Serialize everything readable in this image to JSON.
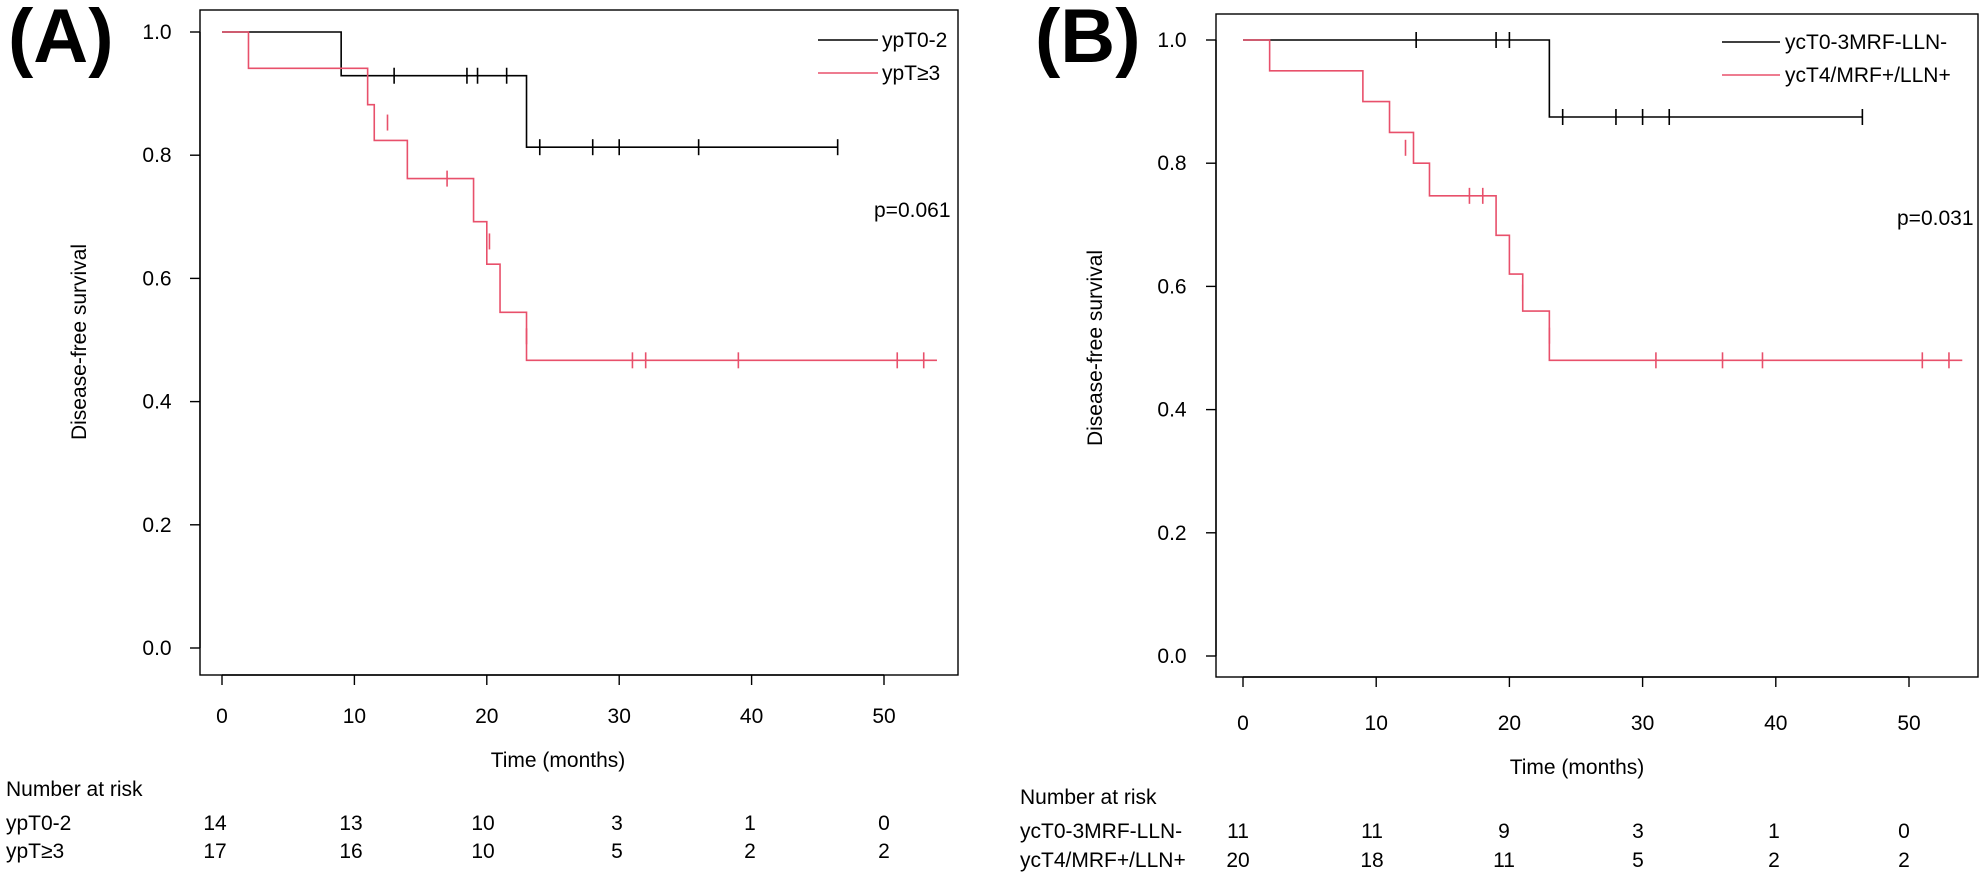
{
  "colors": {
    "group1": "#000000",
    "group2": "#e8506b",
    "background": "#ffffff"
  },
  "chart_data": [
    {
      "type": "line",
      "subtype": "kaplan-meier",
      "panel_label": "(A)",
      "title": "",
      "xlabel": "Time (months)",
      "ylabel": "Disease-free survival",
      "xlim": [
        0,
        55
      ],
      "ylim": [
        0,
        1
      ],
      "x_ticks": [
        0,
        10,
        20,
        30,
        40,
        50
      ],
      "y_ticks": [
        "0.0",
        "0.2",
        "0.4",
        "0.6",
        "0.8",
        "1.0"
      ],
      "legend_position": "top-right",
      "p_value": "p=0.061",
      "series": [
        {
          "name": "ypT0-2",
          "color_key": "group1",
          "steps": [
            [
              0,
              1.0
            ],
            [
              9,
              0.929
            ],
            [
              23,
              0.813
            ],
            [
              46.5,
              0.813
            ]
          ],
          "censored": [
            [
              13,
              0.929
            ],
            [
              18.5,
              0.929
            ],
            [
              19.3,
              0.929
            ],
            [
              21.5,
              0.929
            ],
            [
              24,
              0.813
            ],
            [
              28,
              0.813
            ],
            [
              30,
              0.813
            ],
            [
              36,
              0.813
            ],
            [
              46.5,
              0.813
            ]
          ]
        },
        {
          "name": "ypT≥3",
          "color_key": "group2",
          "steps": [
            [
              0,
              1.0
            ],
            [
              2,
              0.941
            ],
            [
              11,
              0.882
            ],
            [
              11.5,
              0.824
            ],
            [
              14,
              0.762
            ],
            [
              19,
              0.692
            ],
            [
              20,
              0.623
            ],
            [
              21,
              0.545
            ],
            [
              23,
              0.467
            ],
            [
              54,
              0.467
            ]
          ],
          "censored": [
            [
              12.5,
              0.853
            ],
            [
              17,
              0.762
            ],
            [
              20.2,
              0.66
            ],
            [
              23,
              0.506
            ],
            [
              31,
              0.467
            ],
            [
              32,
              0.467
            ],
            [
              39,
              0.467
            ],
            [
              51,
              0.467
            ],
            [
              53,
              0.467
            ]
          ]
        }
      ],
      "risk_table": {
        "title": "Number at risk",
        "times": [
          0,
          10,
          20,
          30,
          40,
          50
        ],
        "rows": [
          {
            "label": "ypT0-2",
            "values": [
              "14",
              "13",
              "10",
              "3",
              "1",
              "0"
            ]
          },
          {
            "label": "ypT≥3",
            "values": [
              "17",
              "16",
              "10",
              "5",
              "2",
              "2"
            ]
          }
        ]
      }
    },
    {
      "type": "line",
      "subtype": "kaplan-meier",
      "panel_label": "(B)",
      "title": "",
      "xlabel": "Time (months)",
      "ylabel": "Disease-free survival",
      "xlim": [
        0,
        55
      ],
      "ylim": [
        0,
        1
      ],
      "x_ticks": [
        0,
        10,
        20,
        30,
        40,
        50
      ],
      "y_ticks": [
        "0.0",
        "0.2",
        "0.4",
        "0.6",
        "0.8",
        "1.0"
      ],
      "legend_position": "top-right",
      "p_value": "p=0.031",
      "series": [
        {
          "name": "ycT0-3MRF-LLN-",
          "color_key": "group1",
          "steps": [
            [
              0,
              1.0
            ],
            [
              23,
              0.875
            ],
            [
              46.5,
              0.875
            ]
          ],
          "censored": [
            [
              13,
              1.0
            ],
            [
              19,
              1.0
            ],
            [
              20,
              1.0
            ],
            [
              24,
              0.875
            ],
            [
              28,
              0.875
            ],
            [
              30,
              0.875
            ],
            [
              32,
              0.875
            ],
            [
              46.5,
              0.875
            ]
          ]
        },
        {
          "name": "ycT4/MRF+/LLN+",
          "color_key": "group2",
          "steps": [
            [
              0,
              1.0
            ],
            [
              2,
              0.95
            ],
            [
              9,
              0.9
            ],
            [
              11,
              0.85
            ],
            [
              12.8,
              0.8
            ],
            [
              14,
              0.747
            ],
            [
              19,
              0.683
            ],
            [
              20,
              0.62
            ],
            [
              21,
              0.56
            ],
            [
              23,
              0.48
            ],
            [
              54,
              0.48
            ]
          ],
          "censored": [
            [
              12.2,
              0.825
            ],
            [
              17,
              0.747
            ],
            [
              18,
              0.747
            ],
            [
              21,
              0.59
            ],
            [
              23,
              0.52
            ],
            [
              31,
              0.48
            ],
            [
              36,
              0.48
            ],
            [
              39,
              0.48
            ],
            [
              51,
              0.48
            ],
            [
              53,
              0.48
            ]
          ]
        }
      ],
      "risk_table": {
        "title": "Number at risk",
        "times": [
          0,
          10,
          20,
          30,
          40,
          50
        ],
        "rows": [
          {
            "label": "ycT0-3MRF-LLN-",
            "values": [
              "11",
              "11",
              "9",
              "3",
              "1",
              "0"
            ]
          },
          {
            "label": "ycT4/MRF+/LLN+",
            "values": [
              "20",
              "18",
              "11",
              "5",
              "2",
              "2"
            ]
          }
        ]
      }
    }
  ]
}
